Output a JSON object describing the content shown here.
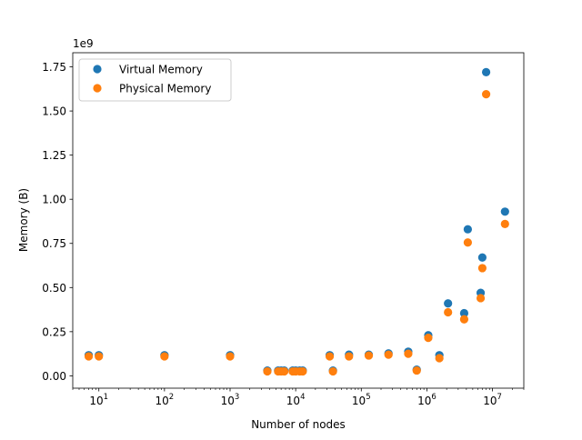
{
  "chart_data": {
    "type": "scatter",
    "title": "",
    "xlabel": "Number of nodes",
    "ylabel": "Memory (B)",
    "xscale": "log",
    "xlim": [
      4,
      30000000
    ],
    "ylim": [
      -70000000.0,
      1830000000.0
    ],
    "y_offset_text": "1e9",
    "x_ticks": [
      {
        "value": 10,
        "base": "10",
        "exp": "1"
      },
      {
        "value": 100,
        "base": "10",
        "exp": "2"
      },
      {
        "value": 1000,
        "base": "10",
        "exp": "3"
      },
      {
        "value": 10000,
        "base": "10",
        "exp": "4"
      },
      {
        "value": 100000,
        "base": "10",
        "exp": "5"
      },
      {
        "value": 1000000,
        "base": "10",
        "exp": "6"
      },
      {
        "value": 10000000,
        "base": "10",
        "exp": "7"
      }
    ],
    "y_ticks": [
      {
        "value": 0.0,
        "label": "0.00"
      },
      {
        "value": 0.25,
        "label": "0.25"
      },
      {
        "value": 0.5,
        "label": "0.50"
      },
      {
        "value": 0.75,
        "label": "0.75"
      },
      {
        "value": 1.0,
        "label": "1.00"
      },
      {
        "value": 1.25,
        "label": "1.25"
      },
      {
        "value": 1.5,
        "label": "1.50"
      },
      {
        "value": 1.75,
        "label": "1.75"
      }
    ],
    "legend_position": "top-left",
    "series": [
      {
        "name": "Virtual Memory",
        "color": "#1f77b4",
        "points": [
          [
            7,
            117000000.0
          ],
          [
            10,
            117000000.0
          ],
          [
            100,
            117000000.0
          ],
          [
            1000,
            117000000.0
          ],
          [
            3700,
            30000000.0
          ],
          [
            5400,
            30000000.0
          ],
          [
            6000,
            30000000.0
          ],
          [
            6700,
            30000000.0
          ],
          [
            9000,
            30000000.0
          ],
          [
            10000,
            30000000.0
          ],
          [
            11500,
            30000000.0
          ],
          [
            12800,
            30000000.0
          ],
          [
            33000,
            117000000.0
          ],
          [
            37000,
            30000000.0
          ],
          [
            65000,
            120000000.0
          ],
          [
            130000,
            120000000.0
          ],
          [
            260000,
            127000000.0
          ],
          [
            520000,
            137000000.0
          ],
          [
            700000,
            35000000.0
          ],
          [
            1050000,
            230000000.0
          ],
          [
            1550000,
            117000000.0
          ],
          [
            2100000,
            410000000.0
          ],
          [
            3700000,
            355000000.0
          ],
          [
            4200000,
            830000000.0
          ],
          [
            6600000,
            470000000.0
          ],
          [
            7000000,
            670000000.0
          ],
          [
            8000000,
            1720000000.0
          ],
          [
            15500000,
            930000000.0
          ]
        ]
      },
      {
        "name": "Physical Memory",
        "color": "#ff7f0e",
        "points": [
          [
            7,
            110000000.0
          ],
          [
            10,
            110000000.0
          ],
          [
            100,
            110000000.0
          ],
          [
            1000,
            110000000.0
          ],
          [
            3700,
            25000000.0
          ],
          [
            5400,
            25000000.0
          ],
          [
            6000,
            25000000.0
          ],
          [
            6700,
            25000000.0
          ],
          [
            9000,
            25000000.0
          ],
          [
            10000,
            25000000.0
          ],
          [
            11500,
            25000000.0
          ],
          [
            12800,
            25000000.0
          ],
          [
            33000,
            110000000.0
          ],
          [
            37000,
            25000000.0
          ],
          [
            65000,
            110000000.0
          ],
          [
            130000,
            115000000.0
          ],
          [
            260000,
            120000000.0
          ],
          [
            520000,
            125000000.0
          ],
          [
            700000,
            30000000.0
          ],
          [
            1050000,
            215000000.0
          ],
          [
            1550000,
            100000000.0
          ],
          [
            2100000,
            360000000.0
          ],
          [
            3700000,
            320000000.0
          ],
          [
            4200000,
            755000000.0
          ],
          [
            6600000,
            440000000.0
          ],
          [
            7000000,
            610000000.0
          ],
          [
            8000000,
            1595000000.0
          ],
          [
            15500000,
            860000000.0
          ]
        ]
      }
    ]
  }
}
